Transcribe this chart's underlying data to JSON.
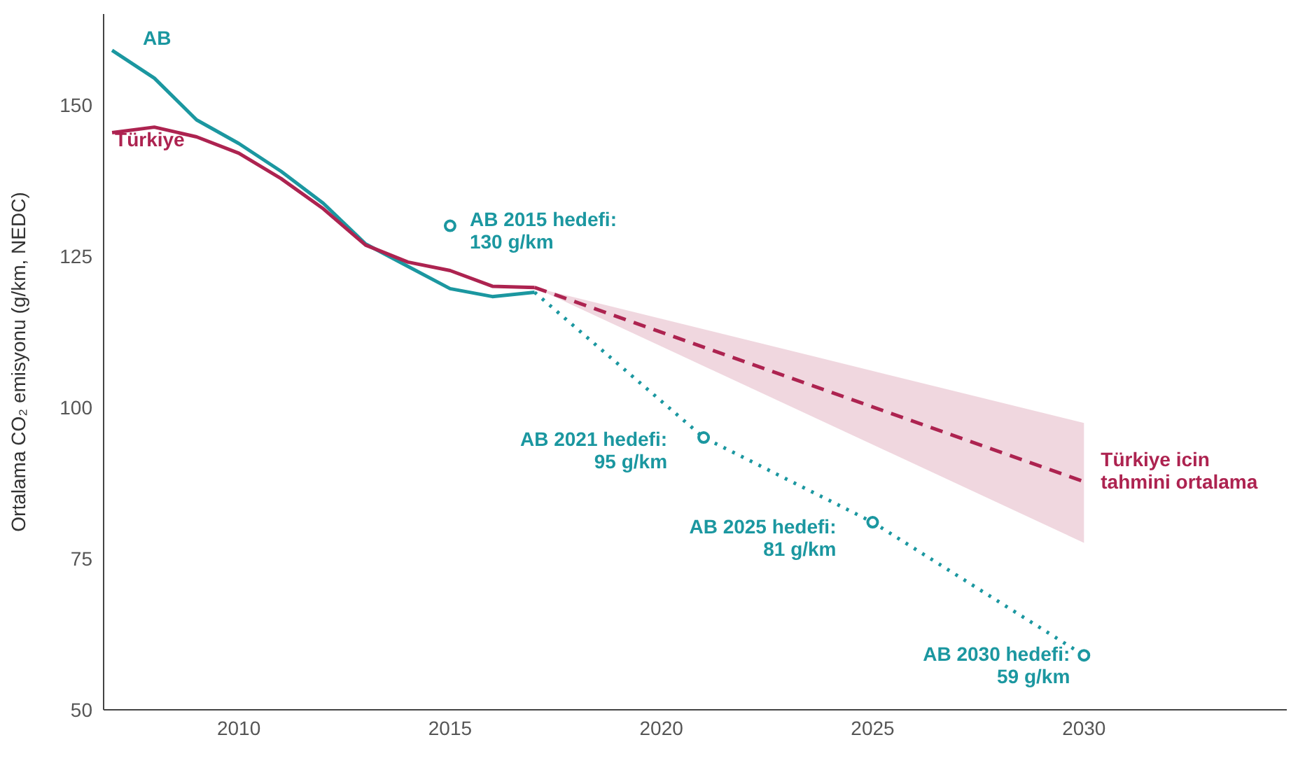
{
  "chart_data": {
    "type": "line",
    "ylabel": "Ortalama CO₂ emisyonu (g/km, NEDC)",
    "xlim": [
      2006.8,
      2034.8
    ],
    "ylim": [
      50,
      165
    ],
    "xticks": [
      2010,
      2015,
      2020,
      2025,
      2030
    ],
    "yticks": [
      50,
      75,
      100,
      125,
      150
    ],
    "grid": false,
    "legend": false,
    "series": [
      {
        "name": "AB",
        "color": "#1b97a0",
        "line_style": "solid",
        "marker": "none",
        "x": [
          2007,
          2008,
          2009,
          2010,
          2011,
          2012,
          2013,
          2014,
          2015,
          2016,
          2017
        ],
        "values": [
          159,
          154.4,
          147.5,
          143.6,
          139,
          133.7,
          127,
          123.3,
          119.6,
          118.3,
          119
        ]
      },
      {
        "name": "Türkiye",
        "color": "#ad2350",
        "line_style": "solid",
        "marker": "none",
        "x": [
          2007,
          2008,
          2009,
          2010,
          2011,
          2012,
          2013,
          2014,
          2015,
          2016,
          2017
        ],
        "values": [
          145.4,
          146.3,
          144.7,
          142,
          137.8,
          132.8,
          126.8,
          124,
          122.6,
          120,
          119.8
        ]
      },
      {
        "color": "#ad2350",
        "line_style": "dashed",
        "marker": "none",
        "x": [
          2017,
          2030
        ],
        "values": [
          119.8,
          87.7
        ],
        "lower": [
          119.8,
          77.6
        ],
        "upper": [
          119.8,
          97.4
        ]
      },
      {
        "color": "#1b97a0",
        "line_style": "dotted",
        "marker": "none",
        "x": [
          2017,
          2021,
          2025,
          2030
        ],
        "values": [
          119,
          95,
          81,
          59
        ]
      },
      {
        "type": "scatter",
        "color": "#1b97a0",
        "marker": "circle",
        "x": [
          2015,
          2021,
          2025,
          2030
        ],
        "values": [
          130,
          95,
          81,
          59
        ]
      }
    ],
    "annotations": [
      {
        "text": "AB 2015 hedefi:\n130 g/km",
        "x": 2015,
        "y": 130
      },
      {
        "text": "AB 2021 hedefi:\n95 g/km",
        "x": 2021,
        "y": 95
      },
      {
        "text": "AB 2025 hedefi:\n81 g/km",
        "x": 2025,
        "y": 81
      },
      {
        "text": "AB 2030 hedefi:\n59 g/km",
        "x": 2030,
        "y": 59
      },
      {
        "text": "Türkiye icin\ntahmini ortalama",
        "x": 2030,
        "y": 87.7
      }
    ]
  }
}
